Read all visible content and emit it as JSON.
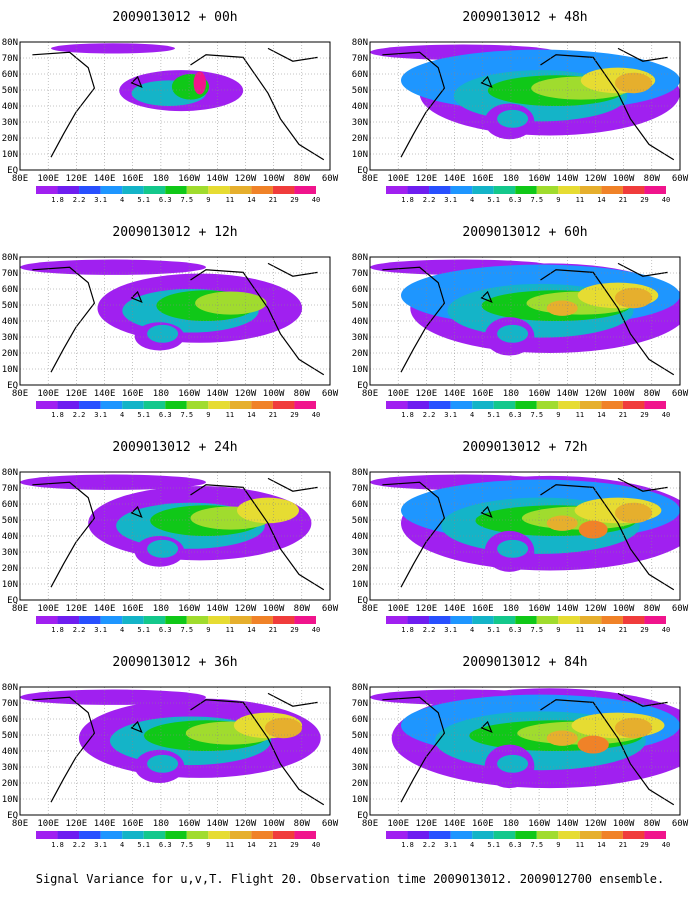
{
  "caption": "Signal Variance for u,v,T. Flight 20. Observation time 2009013012. 2009012700 ensemble.",
  "lat_labels": [
    "80N",
    "70N",
    "60N",
    "50N",
    "40N",
    "30N",
    "20N",
    "10N",
    "EQ"
  ],
  "lon_labels": [
    "80E",
    "100E",
    "120E",
    "140E",
    "160E",
    "180",
    "160W",
    "140W",
    "120W",
    "100W",
    "80W",
    "60W"
  ],
  "legend": {
    "labels": [
      "1.8",
      "2.2",
      "3.1",
      "4",
      "5.1",
      "6.3",
      "7.5",
      "9",
      "11",
      "14",
      "21",
      "29",
      "40"
    ],
    "colors": [
      "#a020f0",
      "#6e1ef0",
      "#2850ff",
      "#1e96ff",
      "#14b4c8",
      "#14c88c",
      "#10c818",
      "#a0dc2e",
      "#e6dc32",
      "#e6af2d",
      "#f08228",
      "#f03c3c",
      "#f0148c"
    ]
  },
  "panels": [
    {
      "title": "2009013012 + 00h",
      "level": 0
    },
    {
      "title": "2009013012 + 48h",
      "level": 4
    },
    {
      "title": "2009013012 + 12h",
      "level": 1
    },
    {
      "title": "2009013012 + 60h",
      "level": 5
    },
    {
      "title": "2009013012 + 24h",
      "level": 2
    },
    {
      "title": "2009013012 + 72h",
      "level": 6
    },
    {
      "title": "2009013012 + 36h",
      "level": 3
    },
    {
      "title": "2009013012 + 84h",
      "level": 7
    }
  ]
}
